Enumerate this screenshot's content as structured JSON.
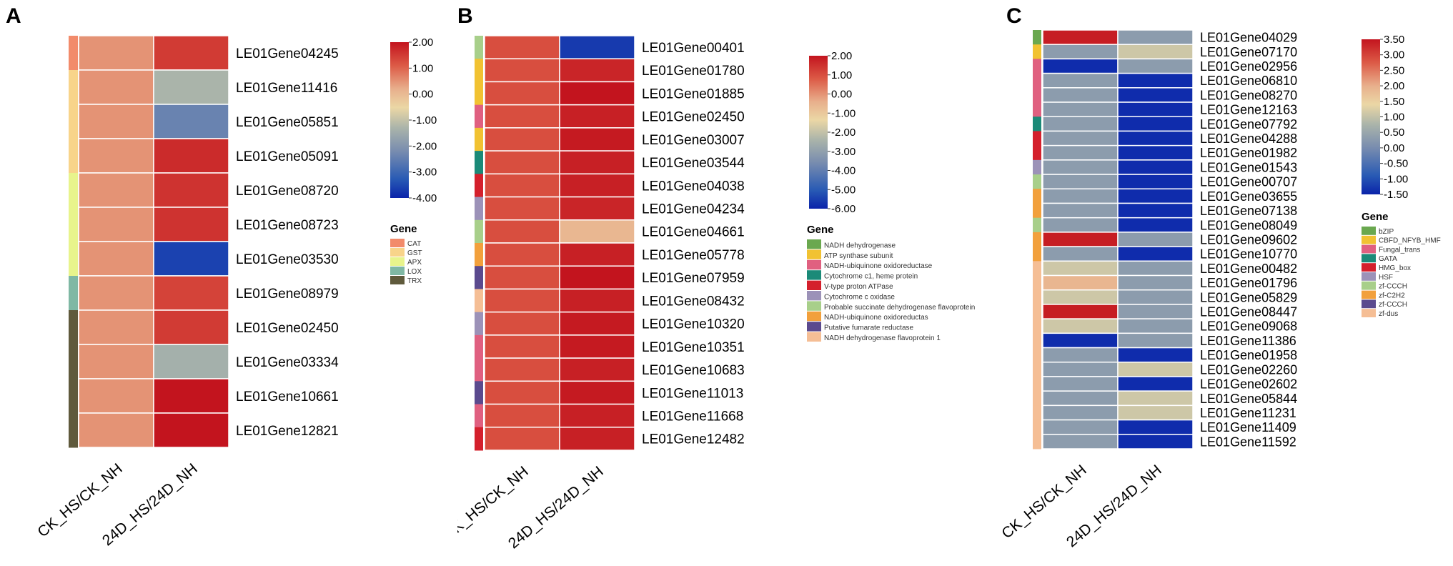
{
  "chart_data": [
    {
      "panel_label": "A",
      "type": "heatmap",
      "columns": [
        "CK_HS/CK_NH",
        "24D_HS/24D_NH"
      ],
      "rows": [
        "LE01Gene04245",
        "LE01Gene11416",
        "LE01Gene05851",
        "LE01Gene05091",
        "LE01Gene08720",
        "LE01Gene08723",
        "LE01Gene03530",
        "LE01Gene08979",
        "LE01Gene02450",
        "LE01Gene03334",
        "LE01Gene10661",
        "LE01Gene12821"
      ],
      "values": [
        [
          0.5,
          1.5
        ],
        [
          0.5,
          -1.3
        ],
        [
          0.5,
          -2.4
        ],
        [
          0.5,
          1.7
        ],
        [
          0.5,
          1.6
        ],
        [
          0.5,
          1.6
        ],
        [
          0.5,
          -3.6
        ],
        [
          0.5,
          1.4
        ],
        [
          0.5,
          1.5
        ],
        [
          0.5,
          -1.4
        ],
        [
          0.5,
          2.0
        ],
        [
          0.5,
          2.0
        ]
      ],
      "groups": [
        "CAT",
        "GST",
        "GST",
        "GST",
        "APX",
        "APX",
        "APX",
        "LOX",
        "TRX",
        "TRX",
        "TRX",
        "TRX"
      ],
      "legend_title": "Gene",
      "legend": [
        {
          "name": "CAT",
          "color": "#F28B6B"
        },
        {
          "name": "GST",
          "color": "#F8D48A"
        },
        {
          "name": "APX",
          "color": "#E8F48C"
        },
        {
          "name": "LOX",
          "color": "#7FB8A4"
        },
        {
          "name": "TRX",
          "color": "#5F5A3C"
        }
      ],
      "colorbar": {
        "ticks": [
          "2.00",
          "1.00",
          "0.00",
          "-1.00",
          "-2.00",
          "-3.00",
          "-4.00"
        ],
        "range": [
          -4,
          2
        ]
      }
    },
    {
      "panel_label": "B",
      "type": "heatmap",
      "columns": [
        "CK_HS/CK_NH",
        "24D_HS/24D_NH"
      ],
      "rows": [
        "LE01Gene00401",
        "LE01Gene01780",
        "LE01Gene01885",
        "LE01Gene02450",
        "LE01Gene03007",
        "LE01Gene03544",
        "LE01Gene04038",
        "LE01Gene04234",
        "LE01Gene04661",
        "LE01Gene05778",
        "LE01Gene07959",
        "LE01Gene08432",
        "LE01Gene10320",
        "LE01Gene10351",
        "LE01Gene10683",
        "LE01Gene11013",
        "LE01Gene11668",
        "LE01Gene12482"
      ],
      "values": [
        [
          1.0,
          -5.6
        ],
        [
          1.0,
          1.7
        ],
        [
          1.0,
          2.0
        ],
        [
          1.0,
          1.8
        ],
        [
          1.0,
          1.9
        ],
        [
          1.0,
          1.8
        ],
        [
          1.0,
          1.8
        ],
        [
          1.0,
          1.7
        ],
        [
          1.0,
          -0.6
        ],
        [
          1.0,
          1.8
        ],
        [
          1.0,
          2.0
        ],
        [
          1.0,
          1.8
        ],
        [
          1.0,
          1.9
        ],
        [
          1.0,
          1.9
        ],
        [
          1.0,
          1.8
        ],
        [
          1.0,
          1.9
        ],
        [
          1.0,
          1.8
        ],
        [
          1.0,
          1.8
        ]
      ],
      "groups": [
        "Probable succinate dehydrogenase flavoprotein",
        "ATP synthase subunit",
        "ATP synthase subunit",
        "NADH-ubiquinone oxidoreductase",
        "ATP synthase subunit",
        "Cytochrome c1, heme protein",
        "V-type proton ATPase",
        "Cytochrome c oxidase",
        "Probable succinate dehydrogenase flavoprotein",
        "NADH-ubiquinone oxidoreductas",
        "Putative fumarate reductase",
        "NADH dehydrogenase flavoprotein 1",
        "Cytochrome c oxidase",
        "NADH-ubiquinone oxidoreductase",
        "NADH-ubiquinone oxidoreductase",
        "Putative fumarate reductase",
        "NADH-ubiquinone oxidoreductase",
        "V-type proton ATPase"
      ],
      "legend_title": "Gene",
      "legend": [
        {
          "name": "NADH dehydrogenase",
          "color": "#6AA84F"
        },
        {
          "name": "ATP synthase subunit",
          "color": "#F1C232"
        },
        {
          "name": "NADH-ubiquinone oxidoreductase",
          "color": "#E06080"
        },
        {
          "name": "Cytochrome c1, heme protein",
          "color": "#1B8A78"
        },
        {
          "name": "V-type proton ATPase",
          "color": "#D4202C"
        },
        {
          "name": "Cytochrome c oxidase",
          "color": "#9C92B8"
        },
        {
          "name": "Probable succinate dehydrogenase flavoprotein",
          "color": "#A8CF8A"
        },
        {
          "name": "NADH-ubiquinone oxidoreductas",
          "color": "#F2A03C"
        },
        {
          "name": "Putative fumarate reductase",
          "color": "#5B4A8E"
        },
        {
          "name": "NADH dehydrogenase flavoprotein 1",
          "color": "#F5BE95"
        }
      ],
      "colorbar": {
        "ticks": [
          "2.00",
          "1.00",
          "0.00",
          "-1.00",
          "-2.00",
          "-3.00",
          "-4.00",
          "-5.00",
          "-6.00"
        ],
        "range": [
          -6,
          2
        ]
      }
    },
    {
      "panel_label": "C",
      "type": "heatmap",
      "columns": [
        "CK_HS/CK_NH",
        "24D_HS/24D_NH"
      ],
      "rows": [
        "LE01Gene04029",
        "LE01Gene07170",
        "LE01Gene02956",
        "LE01Gene06810",
        "LE01Gene08270",
        "LE01Gene12163",
        "LE01Gene07792",
        "LE01Gene04288",
        "LE01Gene01982",
        "LE01Gene01543",
        "LE01Gene00707",
        "LE01Gene03655",
        "LE01Gene07138",
        "LE01Gene08049",
        "LE01Gene09602",
        "LE01Gene10770",
        "LE01Gene00482",
        "LE01Gene01796",
        "LE01Gene05829",
        "LE01Gene08447",
        "LE01Gene09068",
        "LE01Gene11386",
        "LE01Gene01958",
        "LE01Gene02260",
        "LE01Gene02602",
        "LE01Gene05844",
        "LE01Gene11231",
        "LE01Gene11409",
        "LE01Gene11592"
      ],
      "values": [
        [
          3.4,
          0.3
        ],
        [
          0.3,
          1.1
        ],
        [
          -1.4,
          0.3
        ],
        [
          0.3,
          -1.4
        ],
        [
          0.3,
          -1.4
        ],
        [
          0.3,
          -1.4
        ],
        [
          0.3,
          -1.4
        ],
        [
          0.3,
          -1.4
        ],
        [
          0.3,
          -1.4
        ],
        [
          0.3,
          -1.4
        ],
        [
          0.3,
          -1.4
        ],
        [
          0.3,
          -1.4
        ],
        [
          0.3,
          -1.4
        ],
        [
          0.3,
          -1.4
        ],
        [
          3.4,
          0.3
        ],
        [
          0.3,
          -1.4
        ],
        [
          1.1,
          0.3
        ],
        [
          1.9,
          0.3
        ],
        [
          1.1,
          0.3
        ],
        [
          3.4,
          0.3
        ],
        [
          1.1,
          0.3
        ],
        [
          -1.4,
          0.3
        ],
        [
          0.3,
          -1.4
        ],
        [
          0.3,
          1.1
        ],
        [
          0.3,
          -1.4
        ],
        [
          0.3,
          1.1
        ],
        [
          0.3,
          1.1
        ],
        [
          0.3,
          -1.4
        ],
        [
          0.3,
          -1.4
        ]
      ],
      "groups": [
        "bZIP",
        "CBFD_NFYB_HMF",
        "Fungal_trans",
        "Fungal_trans",
        "Fungal_trans",
        "Fungal_trans",
        "GATA",
        "HMG_box",
        "HMG_box",
        "HSF",
        "zf-CCCH",
        "zf-C2H2",
        "zf-C2H2",
        "zf-CCCH",
        "zf-C2H2",
        "zf-C2H2",
        "zf-dus",
        "zf-dus",
        "zf-dus",
        "zf-dus",
        "zf-dus",
        "zf-dus",
        "zf-dus",
        "zf-dus",
        "zf-dus",
        "zf-dus",
        "zf-dus",
        "zf-dus",
        "zf-dus"
      ],
      "legend_title": "Gene",
      "legend": [
        {
          "name": "bZIP",
          "color": "#6AA84F"
        },
        {
          "name": "CBFD_NFYB_HMF",
          "color": "#F1C232"
        },
        {
          "name": "Fungal_trans",
          "color": "#E06080"
        },
        {
          "name": "GATA",
          "color": "#1B8A78"
        },
        {
          "name": "HMG_box",
          "color": "#D4202C"
        },
        {
          "name": "HSF",
          "color": "#9C92B8"
        },
        {
          "name": "zf-CCCH",
          "color": "#A8CF8A"
        },
        {
          "name": "zf-C2H2",
          "color": "#F2A03C"
        },
        {
          "name": "zf-CCCH",
          "color": "#5B4A8E"
        },
        {
          "name": "zf-dus",
          "color": "#F5BE95"
        }
      ],
      "colorbar": {
        "ticks": [
          "3.50",
          "3.00",
          "2.50",
          "2.00",
          "1.50",
          "1.00",
          "0.50",
          "0.00",
          "-0.50",
          "-1.00",
          "-1.50"
        ],
        "range": [
          -1.5,
          3.5
        ]
      }
    }
  ]
}
